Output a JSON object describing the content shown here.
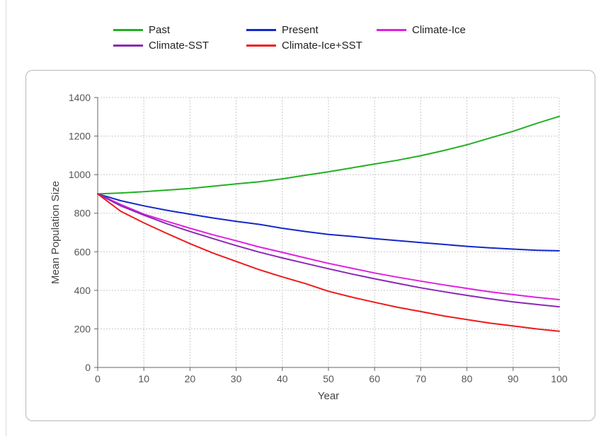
{
  "chart_data": {
    "type": "line",
    "title": "",
    "xlabel": "Year",
    "ylabel": "Mean Population Size",
    "xlim": [
      0,
      100
    ],
    "ylim": [
      0,
      1400
    ],
    "x_ticks": [
      0,
      10,
      20,
      30,
      40,
      50,
      60,
      70,
      80,
      90,
      100
    ],
    "y_ticks": [
      0,
      200,
      400,
      600,
      800,
      1000,
      1200,
      1400
    ],
    "grid": true,
    "legend_position": "top",
    "x": [
      0,
      5,
      10,
      15,
      20,
      25,
      30,
      35,
      40,
      45,
      50,
      55,
      60,
      65,
      70,
      75,
      80,
      85,
      90,
      95,
      100
    ],
    "series": [
      {
        "name": "Past",
        "color": "#22b022",
        "values": [
          900,
          905,
          912,
          920,
          928,
          940,
          952,
          963,
          978,
          997,
          1015,
          1035,
          1055,
          1075,
          1098,
          1125,
          1155,
          1190,
          1225,
          1265,
          1302
        ]
      },
      {
        "name": "Present",
        "color": "#1428c8",
        "values": [
          900,
          865,
          838,
          815,
          795,
          775,
          758,
          742,
          722,
          705,
          690,
          680,
          668,
          658,
          648,
          638,
          628,
          620,
          614,
          608,
          605
        ]
      },
      {
        "name": "Climate-Ice",
        "color": "#e020e0",
        "values": [
          900,
          845,
          795,
          758,
          722,
          688,
          657,
          625,
          597,
          568,
          540,
          515,
          490,
          468,
          448,
          428,
          410,
          392,
          378,
          364,
          352
        ]
      },
      {
        "name": "Climate-SST",
        "color": "#8a28b4",
        "values": [
          900,
          838,
          790,
          745,
          705,
          668,
          632,
          598,
          568,
          540,
          512,
          485,
          460,
          436,
          413,
          393,
          374,
          356,
          340,
          327,
          315
        ]
      },
      {
        "name": "Climate-Ice+SST",
        "color": "#ee1a1a",
        "values": [
          900,
          810,
          750,
          695,
          642,
          593,
          550,
          507,
          470,
          435,
          395,
          365,
          338,
          312,
          290,
          267,
          248,
          230,
          215,
          200,
          188
        ]
      }
    ]
  }
}
